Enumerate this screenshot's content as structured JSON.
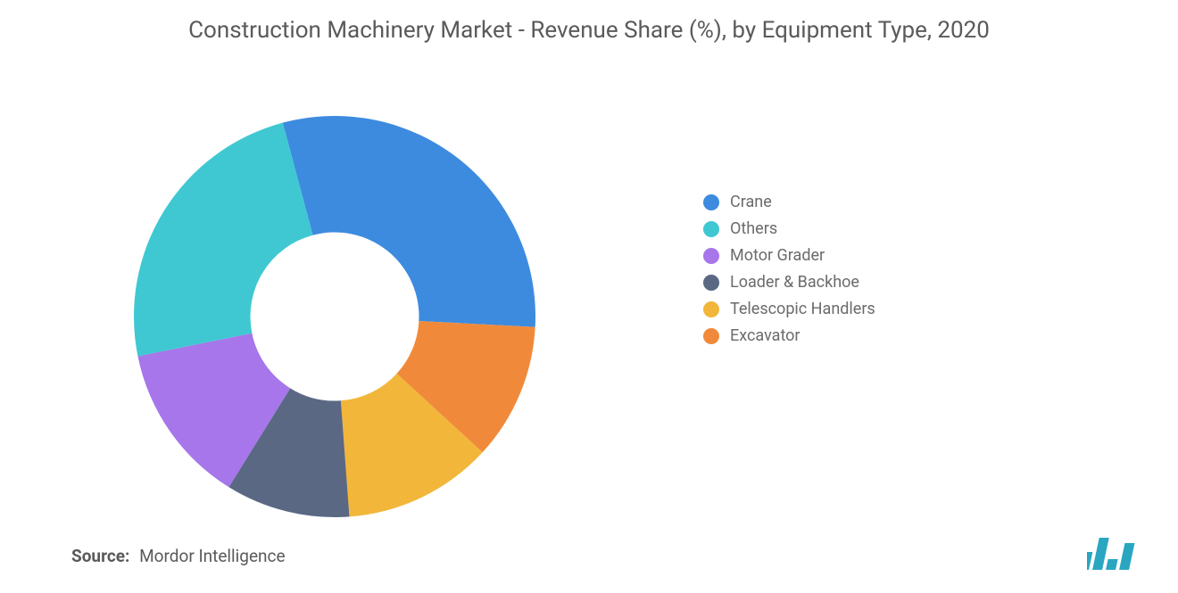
{
  "title": "Construction Machinery Market - Revenue Share (%), by Equipment Type, 2020",
  "title_color": "#5a5a5a",
  "title_fontsize": 26,
  "background_color": "#ffffff",
  "chart": {
    "type": "pie",
    "variant": "donut",
    "inner_radius_pct": 42,
    "outer_radius_pct": 100,
    "start_angle_deg": -15,
    "slices": [
      {
        "key": "crane",
        "label": "Crane",
        "value": 30,
        "color": "#3d8bdf"
      },
      {
        "key": "others",
        "label": "Others",
        "value": 24,
        "color": "#3fc8d2"
      },
      {
        "key": "motor",
        "label": "Motor Grader",
        "value": 13,
        "color": "#a676ea"
      },
      {
        "key": "loader",
        "label": "Loader &amp; Backhoe",
        "value": 10,
        "color": "#5a6884"
      },
      {
        "key": "telescopic",
        "label": "Telescopic Handlers",
        "value": 12,
        "color": "#f2b63a"
      },
      {
        "key": "excavator",
        "label": "Excavator",
        "value": 11,
        "color": "#f08a3a"
      }
    ]
  },
  "legend": {
    "fontsize": 18,
    "label_color": "#6b6b6b",
    "order": [
      "crane",
      "others",
      "motor",
      "loader",
      "telescopic",
      "excavator"
    ]
  },
  "source": {
    "label": "Source:",
    "value": "Mordor Intelligence",
    "fontsize": 19
  },
  "logo": {
    "name": "mordor-intelligence-logo",
    "bar_color": "#2aa6c1",
    "bar_heights": [
      20,
      36,
      12,
      30
    ]
  }
}
